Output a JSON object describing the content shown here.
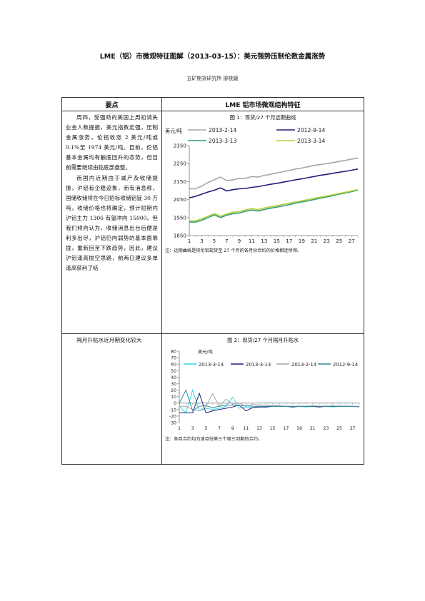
{
  "document": {
    "title": "LME（铝）市微观特征图解（2013-03-15）：美元强势压制伦数金属涨势",
    "author": "五矿期货研究所  廖桃媛"
  },
  "table": {
    "col1_header": "要点",
    "col2_header": "LME 铝市场微观结构特征",
    "row1": {
      "para1": "周四，受强劲的美国上周初请失业金人数提振，美元指数走强，压制金属涨势，伦铝收涨 2 美元/吨或 0.1%至 1974 美元/吨。目前，伦铝基本金属均有触底回升的态势，但目前需要继续由临底部盘整。",
      "para2": "而国内近期由于减产及收储提振，沪铝有企稳迹象，而有消息称，国储收储将在今日招标收储铝锭 30 万吨，收储价格也将确定，预计短期内沪铝主力 1306 有望冲向 15000。但我们倾向认为，收储消息出台后便是利多出尽，沪铝仍向弱势的基本面靠拢，重新回至下跌趋势，因此，建议沪铝逢高抛空思路，前两日建议多单逢高获利了结",
      "fig_caption": "图 1：现货/27 个月远期曲线",
      "fig_note": "注：远期曲线是将伦铝现货至 27 个月的各月份合约的价格相连所得。"
    },
    "row2": {
      "text": "隔月升贴水近月期变化较大",
      "fig_caption": "图 2：现货/27 个月隔月升贴水",
      "fig_note": "注：各月合约均为该月份第三个周三到期的合约。"
    }
  },
  "chart_data": [
    {
      "type": "line",
      "ylabel": "美元/吨",
      "ylim": [
        1850,
        2350
      ],
      "yticks": [
        1850,
        1950,
        2050,
        2150,
        2250,
        2350
      ],
      "x": [
        1,
        2,
        3,
        4,
        5,
        6,
        7,
        8,
        9,
        10,
        11,
        12,
        13,
        14,
        15,
        16,
        17,
        18,
        19,
        20,
        21,
        22,
        23,
        24,
        25,
        26,
        27,
        28
      ],
      "xtick_labels": [
        "1",
        "3",
        "5",
        "7",
        "9",
        "11",
        "13",
        "15",
        "17",
        "19",
        "21",
        "23",
        "25",
        "27"
      ],
      "series": [
        {
          "name": "2013-2-14",
          "color": "#a6a6a6",
          "values": [
            2110,
            2110,
            2125,
            2145,
            2160,
            2175,
            2155,
            2160,
            2168,
            2168,
            2178,
            2175,
            2185,
            2190,
            2198,
            2205,
            2212,
            2220,
            2225,
            2232,
            2240,
            2245,
            2250,
            2255,
            2262,
            2268,
            2275,
            2280
          ]
        },
        {
          "name": "2012-9-14",
          "color": "#1f1f7a",
          "values": [
            2060,
            2068,
            2080,
            2092,
            2102,
            2115,
            2098,
            2105,
            2110,
            2112,
            2118,
            2122,
            2128,
            2135,
            2140,
            2147,
            2153,
            2160,
            2165,
            2172,
            2178,
            2185,
            2190,
            2196,
            2202,
            2207,
            2213,
            2220
          ]
        },
        {
          "name": "2013-3-13",
          "color": "#2e9b7b",
          "values": [
            1925,
            1925,
            1935,
            1950,
            1965,
            1950,
            1963,
            1972,
            1975,
            1985,
            1992,
            1986,
            1995,
            2002,
            2008,
            2015,
            2022,
            2030,
            2037,
            2043,
            2050,
            2058,
            2065,
            2072,
            2080,
            2087,
            2094,
            2103
          ]
        },
        {
          "name": "2013-3-14",
          "color": "#b5d334",
          "values": [
            1932,
            1932,
            1943,
            1958,
            1972,
            1957,
            1970,
            1980,
            1983,
            1993,
            2000,
            1994,
            2003,
            2010,
            2016,
            2023,
            2030,
            2037,
            2043,
            2050,
            2057,
            2064,
            2070,
            2077,
            2084,
            2091,
            2098,
            2106
          ]
        }
      ]
    },
    {
      "type": "line",
      "ylabel": "美元/吨",
      "ylim": [
        -30,
        80
      ],
      "yticks": [
        -30,
        -20,
        -10,
        0,
        10,
        20,
        30,
        40,
        50,
        60,
        70,
        80
      ],
      "x": [
        1,
        2,
        3,
        4,
        5,
        6,
        7,
        8,
        9,
        10,
        11,
        12,
        13,
        14,
        15,
        16,
        17,
        18,
        19,
        20,
        21,
        22,
        23,
        24,
        25,
        26,
        27,
        28
      ],
      "xtick_labels": [
        "1",
        "3",
        "5",
        "7",
        "9",
        "11",
        "13",
        "15",
        "17",
        "19",
        "21",
        "23",
        "25",
        "27"
      ],
      "series": [
        {
          "name": "2013-3-14",
          "color": "#33d6e8",
          "values": [
            -5,
            -15,
            20,
            -12,
            -8,
            -10,
            -8,
            -5,
            9,
            -8,
            -6,
            -7,
            -5,
            -6,
            -5,
            -5,
            -5,
            -6,
            -5,
            -6,
            -5,
            -5,
            -5,
            -6,
            -5,
            -5,
            -5,
            -6
          ]
        },
        {
          "name": "2013-3-13",
          "color": "#1f1f7a",
          "values": [
            -15,
            -15,
            -15,
            15,
            -15,
            -12,
            -10,
            -8,
            -6,
            -3,
            -12,
            -7,
            -6,
            -6,
            -5,
            -5,
            -5,
            -6,
            -5,
            -5,
            -5,
            -6,
            -5,
            -5,
            -5,
            -5,
            -5,
            -6
          ]
        },
        {
          "name": "2013-2-14",
          "color": "#a6a6a6",
          "values": [
            -5,
            -5,
            -10,
            -12,
            -5,
            15,
            -5,
            6,
            -2,
            0,
            -5,
            -2,
            -3,
            -3,
            -4,
            -4,
            -5,
            -5,
            -5,
            -5,
            -4,
            -5,
            -5,
            -4,
            -5,
            -5,
            -5,
            -6
          ]
        },
        {
          "name": "2012-9-14",
          "color": "#2e8b9a",
          "values": [
            0,
            20,
            -12,
            -5,
            -4,
            -7,
            -5,
            -3,
            -3,
            -4,
            -4,
            -5,
            -5,
            -5,
            -5,
            -5,
            -5,
            -5,
            -5,
            -5,
            -5,
            -5,
            -5,
            -5,
            -5,
            -5,
            -5,
            -5
          ]
        }
      ]
    }
  ]
}
